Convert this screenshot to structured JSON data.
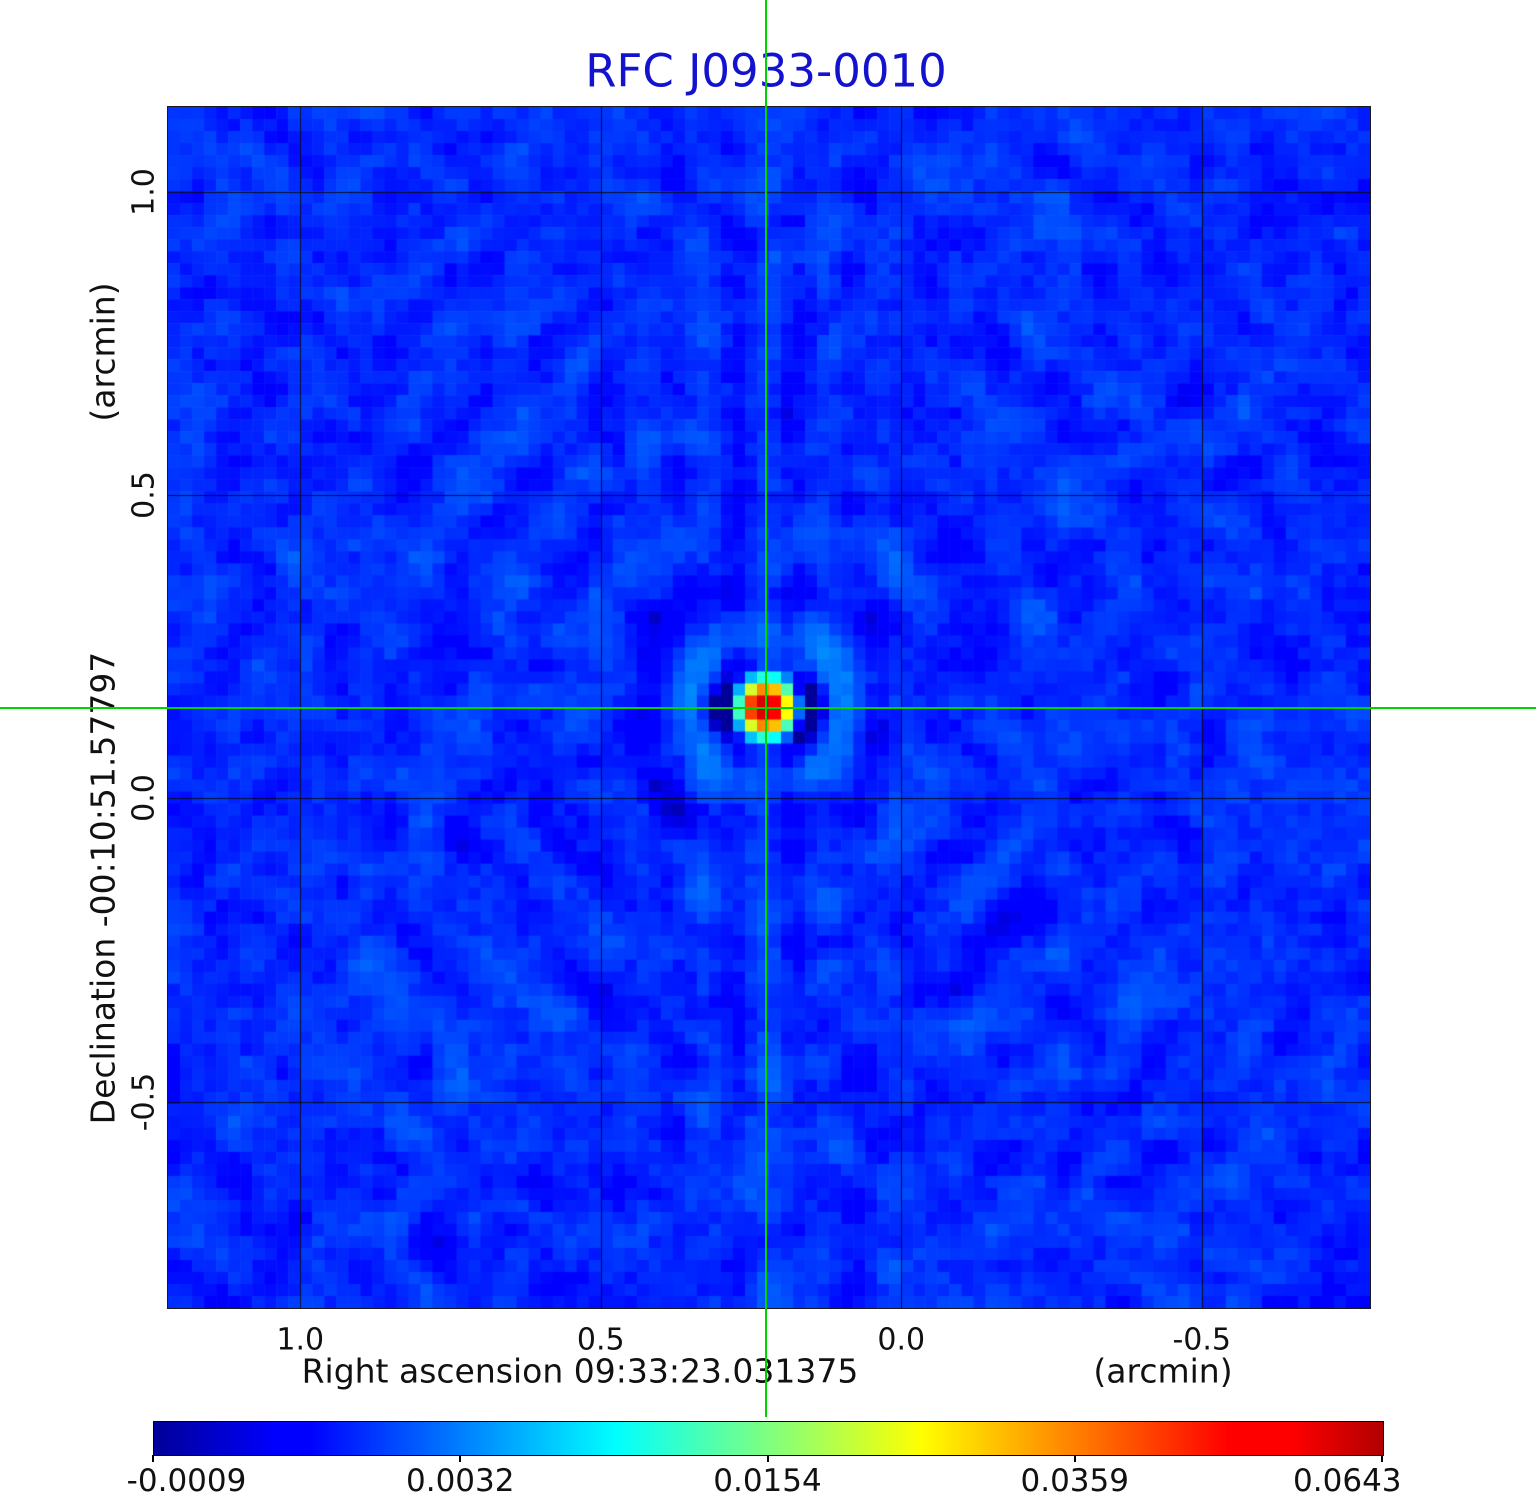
{
  "title": "RFC J0933-0010",
  "colors": {
    "title": "#1212cf",
    "crosshair": "#00d400",
    "grid": "#141414",
    "tick_text": "#111111"
  },
  "axes": {
    "x_label": "Right ascension  09:33:23.031375",
    "x_unit": "(arcmin)",
    "y_label": "Declination  -00:10:51.57797",
    "y_unit": "(arcmin)",
    "x_tick_labels": [
      "1.0",
      "0.5",
      "0.0",
      "-0.5"
    ],
    "y_tick_labels": [
      "1.0",
      "0.5",
      "0.0",
      "-0.5"
    ]
  },
  "colorbar": {
    "tick_labels": [
      "-0.0009",
      "0.0032",
      "0.0154",
      "0.0359",
      "0.0643"
    ]
  },
  "chart_data": {
    "type": "heatmap",
    "title": "RFC J0933-0010",
    "xlabel": "Right ascension 09:33:23.031375 (arcmin)",
    "ylabel": "Declination -00:10:51.57797 (arcmin)",
    "x_range": [
      1.22,
      -0.78
    ],
    "y_range": [
      1.14,
      -0.84
    ],
    "x_ticks": [
      1.0,
      0.5,
      0.0,
      -0.5
    ],
    "y_ticks": [
      1.0,
      0.5,
      0.0,
      -0.5
    ],
    "grid": true,
    "colormap": "jet",
    "intensity_scale": "sqrt",
    "vmin": -0.0009,
    "vmax": 0.0643,
    "intensity_ticks": [
      -0.0009,
      0.0032,
      0.0154,
      0.0359,
      0.0643
    ],
    "background_level": 0.0009,
    "noise_rms": 0.0006,
    "source": {
      "ra_offset_arcmin": 0.225,
      "dec_offset_arcmin": 0.15,
      "peak": 0.0643,
      "fwhm_arcmin": 0.063
    },
    "crosshair": {
      "ra_offset_arcmin": 0.225,
      "dec_offset_arcmin": 0.15
    },
    "legend_position": "bottom-colorbar"
  }
}
